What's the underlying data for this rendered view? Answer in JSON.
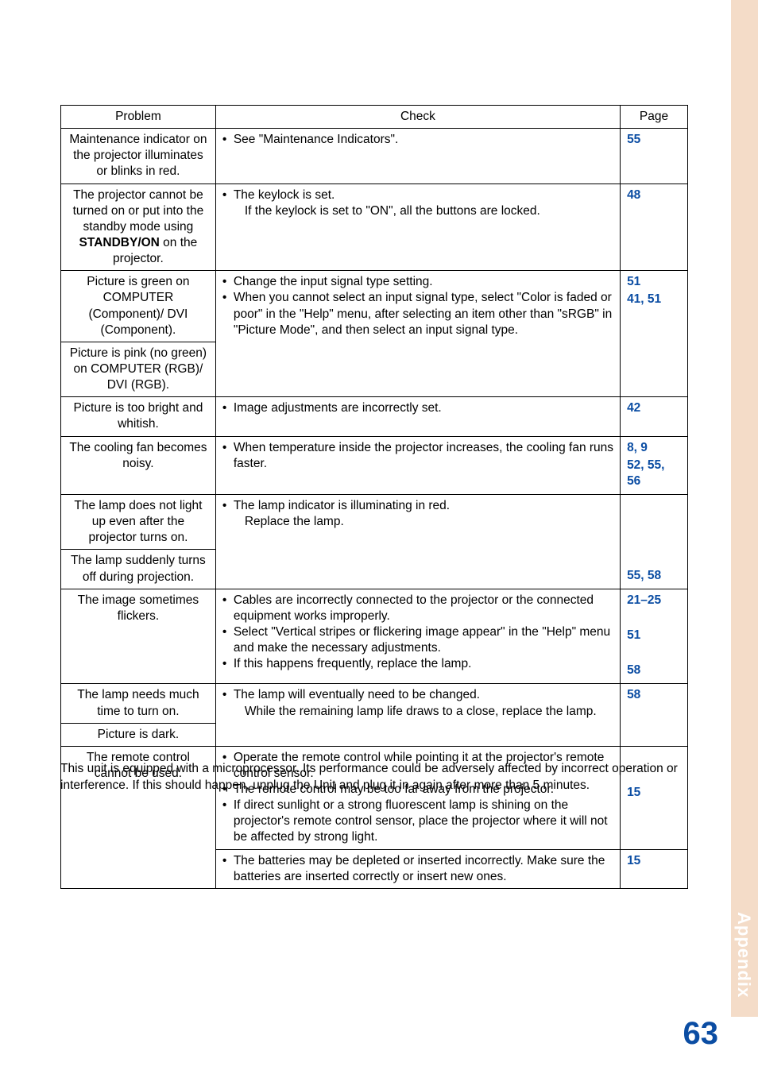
{
  "colors": {
    "link_blue": "#0b4da3",
    "tab_bg": "#f4dcc8",
    "tab_text": "#ffffff",
    "border": "#000000",
    "text": "#000000"
  },
  "typography": {
    "body_fontsize_pt": 11.5,
    "pagenum_fontsize_pt": 30
  },
  "table": {
    "headers": {
      "problem": "Problem",
      "check": "Check",
      "page": "Page"
    },
    "rows": {
      "r1": {
        "problem": "Maintenance indicator on the projector illuminates or blinks in red.",
        "checks": [
          "See \"Maintenance Indicators\"."
        ],
        "pages": [
          "55"
        ]
      },
      "r2": {
        "problem_pre": "The projector cannot be turned on or put into the standby mode using ",
        "problem_bold": "STANDBY/ON",
        "problem_post": " on the projector.",
        "checks": [
          "The keylock is set.",
          "If the keylock is set to \"ON\", all the buttons are locked."
        ],
        "pages": [
          "48"
        ]
      },
      "r3a": {
        "problem": "Picture is green on COMPUTER (Component)/ DVI (Component)."
      },
      "r3b": {
        "problem": "Picture is pink (no green) on COMPUTER (RGB)/ DVI (RGB)."
      },
      "r3check": {
        "checks": [
          "Change the input signal type setting.",
          "When you cannot select an input signal type, select \"Color is faded or poor\" in the \"Help\" menu, after selecting an item other than \"sRGB\" in \"Picture Mode\", and then select an input signal type."
        ],
        "pages": [
          "51",
          "41, 51"
        ]
      },
      "r4": {
        "problem": "Picture is too bright and whitish.",
        "checks": [
          "Image adjustments are incorrectly set."
        ],
        "pages": [
          "42"
        ]
      },
      "r5": {
        "problem": "The cooling fan becomes noisy.",
        "checks": [
          "When temperature inside the projector increases, the cooling fan runs faster."
        ],
        "pages": [
          "8, 9",
          "52, 55, 56"
        ]
      },
      "r6a": {
        "problem": "The lamp does not light up even after the projector turns on."
      },
      "r6b": {
        "problem": "The lamp suddenly turns off during projection."
      },
      "r6check": {
        "checks": [
          "The lamp indicator is illuminating in red.",
          "Replace the lamp."
        ],
        "pages": [
          "",
          "55, 58"
        ]
      },
      "r7": {
        "problem": "The image sometimes flickers.",
        "checks": [
          "Cables are incorrectly connected to the projector or the connected equipment works improperly.",
          "Select \"Vertical stripes or flickering image appear\" in the \"Help\" menu and make the necessary adjustments.",
          "If this happens frequently, replace the lamp."
        ],
        "pages": [
          "21–25",
          "",
          "51",
          "",
          "58"
        ]
      },
      "r8a": {
        "problem": "The lamp needs much time to turn on."
      },
      "r8b": {
        "problem": "Picture is dark."
      },
      "r8check": {
        "checks": [
          "The lamp will eventually need to be changed.",
          "While the remaining lamp life draws to a close, replace the lamp."
        ],
        "pages": [
          "58"
        ]
      },
      "r9a": {
        "problem": "The remote control cannot be used.",
        "checks": [
          "Operate the remote control while pointing it at the projector's remote control sensor.",
          "The remote control may be too far away from the projector.",
          "If direct sunlight or a strong fluorescent lamp is shining on the projector's remote control sensor, place the projector where it will not be affected by strong light."
        ],
        "pages": [
          "",
          "",
          "15"
        ]
      },
      "r9b": {
        "checks": [
          "The batteries may be depleted or inserted incorrectly. Make sure the batteries are inserted correctly or insert new ones."
        ],
        "pages": [
          "15"
        ]
      }
    }
  },
  "footnote": "This unit is equipped with a microprocessor. Its performance could be adversely affected by incorrect operation or interference. If this should happen, unplug the Unit and plug it in again after more than 5 minutes.",
  "side_tab": "Appendix",
  "page_number": "63"
}
